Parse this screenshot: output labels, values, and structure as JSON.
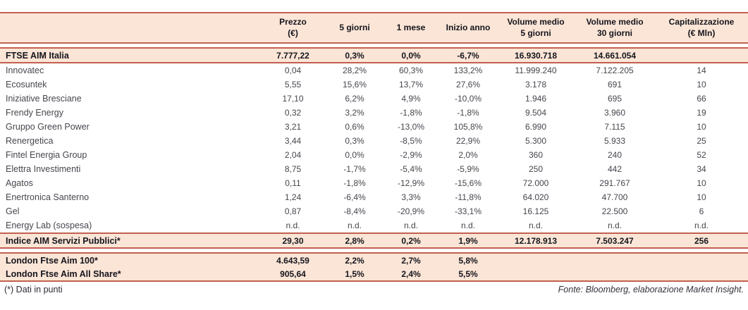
{
  "colors": {
    "rule": "#c2604f",
    "highlight_fill": "#fbe5d6",
    "text_bold": "#15151d",
    "text_regular": "#46464e"
  },
  "table": {
    "columns": [
      {
        "id": "name",
        "lines": []
      },
      {
        "id": "prezzo",
        "lines": [
          "Prezzo",
          "(€)"
        ]
      },
      {
        "id": "5-giorni",
        "lines": [
          "5 giorni"
        ]
      },
      {
        "id": "1-mese",
        "lines": [
          "1 mese"
        ]
      },
      {
        "id": "inizio-anno",
        "lines": [
          "Inizio anno"
        ]
      },
      {
        "id": "volume-medio-5-giorni",
        "lines": [
          "Volume medio",
          "5 giorni"
        ]
      },
      {
        "id": "volume-medio-30-giorni",
        "lines": [
          "Volume medio",
          "30 giorni"
        ]
      },
      {
        "id": "capitalizzazione",
        "lines": [
          "Capitalizzazione",
          "(€ Mln)"
        ]
      }
    ],
    "sections": [
      {
        "name": "section-ftse-aim-italia",
        "type": "highlight",
        "gap_before": true,
        "rows": [
          {
            "name": "FTSE AIM Italia",
            "values": [
              "7.777,22",
              "0,3%",
              "0,0%",
              "-6,7%",
              "16.930.718",
              "14.661.054",
              ""
            ]
          }
        ]
      },
      {
        "name": "section-stocks",
        "type": "plain",
        "gap_before": false,
        "rows": [
          {
            "name": "Innovatec",
            "values": [
              "0,04",
              "28,2%",
              "60,3%",
              "133,2%",
              "11.999.240",
              "7.122.205",
              "14"
            ]
          },
          {
            "name": "Ecosuntek",
            "values": [
              "5,55",
              "15,6%",
              "13,7%",
              "27,6%",
              "3.178",
              "691",
              "10"
            ]
          },
          {
            "name": "Iniziative Bresciane",
            "values": [
              "17,10",
              "6,2%",
              "4,9%",
              "-10,0%",
              "1.946",
              "695",
              "66"
            ]
          },
          {
            "name": "Frendy Energy",
            "values": [
              "0,32",
              "3,2%",
              "-1,8%",
              "-1,8%",
              "9.504",
              "3.960",
              "19"
            ]
          },
          {
            "name": "Gruppo Green Power",
            "values": [
              "3,21",
              "0,6%",
              "-13,0%",
              "105,8%",
              "6.990",
              "7.115",
              "10"
            ]
          },
          {
            "name": "Renergetica",
            "values": [
              "3,44",
              "0,3%",
              "-8,5%",
              "22,9%",
              "5.300",
              "5.933",
              "25"
            ]
          },
          {
            "name": "Fintel Energia Group",
            "values": [
              "2,04",
              "0,0%",
              "-2,9%",
              "2,0%",
              "360",
              "240",
              "52"
            ]
          },
          {
            "name": "Elettra Investimenti",
            "values": [
              "8,75",
              "-1,7%",
              "-5,4%",
              "-5,9%",
              "250",
              "442",
              "34"
            ]
          },
          {
            "name": "Agatos",
            "values": [
              "0,11",
              "-1,8%",
              "-12,9%",
              "-15,6%",
              "72.000",
              "291.767",
              "10"
            ]
          },
          {
            "name": "Enertronica Santerno",
            "values": [
              "1,24",
              "-6,4%",
              "3,3%",
              "-11,8%",
              "64.020",
              "47.700",
              "10"
            ]
          },
          {
            "name": "Gel",
            "values": [
              "0,87",
              "-8,4%",
              "-20,9%",
              "-33,1%",
              "16.125",
              "22.500",
              "6"
            ]
          },
          {
            "name": "Energy Lab (sospesa)",
            "values": [
              "n.d.",
              "n.d.",
              "n.d.",
              "n.d.",
              "n.d.",
              "n.d.",
              "n.d."
            ]
          }
        ]
      },
      {
        "name": "section-indice-aim-servizi-pubblici",
        "type": "highlight",
        "gap_before": false,
        "rows": [
          {
            "name": "Indice AIM Servizi Pubblici*",
            "values": [
              "29,30",
              "2,8%",
              "0,2%",
              "1,9%",
              "12.178.913",
              "7.503.247",
              "256"
            ]
          }
        ]
      },
      {
        "name": "section-london-ftse",
        "type": "highlight",
        "gap_before": true,
        "rows": [
          {
            "name": "London Ftse Aim 100*",
            "values": [
              "4.643,59",
              "2,2%",
              "2,7%",
              "5,8%",
              "",
              "",
              ""
            ]
          },
          {
            "name": "London Ftse Aim All Share*",
            "values": [
              "905,64",
              "1,5%",
              "2,4%",
              "5,5%",
              "",
              "",
              ""
            ]
          }
        ]
      }
    ]
  },
  "footer": {
    "note_left": "(*) Dati in punti",
    "source_right": "Fonte: Bloomberg, elaborazione Market Insight."
  }
}
